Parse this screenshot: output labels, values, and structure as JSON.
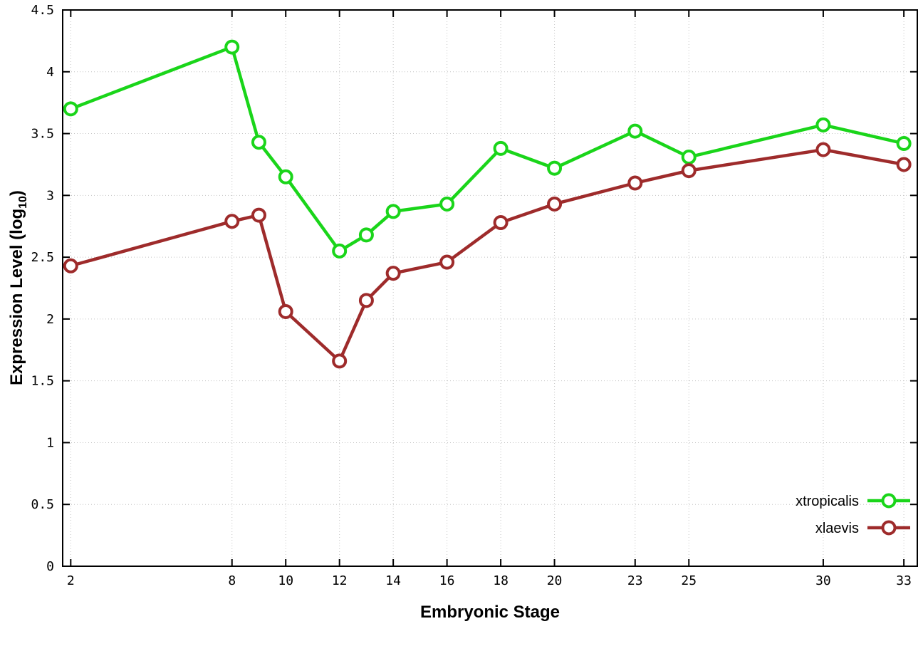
{
  "chart_data": {
    "type": "line",
    "title": "",
    "xlabel": "Embryonic Stage",
    "ylabel": "Expression Level (log10)",
    "ylabel_parts": {
      "main": "Expression Level (log",
      "sub": "10",
      "end": ")"
    },
    "x": [
      2,
      8,
      9,
      10,
      12,
      13,
      14,
      16,
      18,
      20,
      23,
      25,
      30,
      33
    ],
    "series": [
      {
        "name": "xtropicalis",
        "color": "#1ad51a",
        "values": [
          3.7,
          4.2,
          3.43,
          3.15,
          2.55,
          2.68,
          2.87,
          2.93,
          3.38,
          3.22,
          3.52,
          3.31,
          3.57,
          3.42
        ]
      },
      {
        "name": "xlaevis",
        "color": "#9e2b2b",
        "values": [
          2.43,
          2.79,
          2.84,
          2.06,
          1.66,
          2.15,
          2.37,
          2.46,
          2.78,
          2.93,
          3.1,
          3.2,
          3.37,
          3.25
        ]
      }
    ],
    "xticks": [
      2,
      8,
      10,
      12,
      14,
      16,
      18,
      20,
      23,
      25,
      30,
      33
    ],
    "ytick_labels": [
      "0",
      "0.5",
      "1",
      "1.5",
      "2",
      "2.5",
      "3",
      "3.5",
      "4",
      "4.5"
    ],
    "ytick_values": [
      0,
      0.5,
      1,
      1.5,
      2,
      2.5,
      3,
      3.5,
      4,
      4.5
    ],
    "xlim": [
      1.7,
      33.5
    ],
    "ylim": [
      0,
      4.5
    ],
    "grid": true,
    "legend_position": "bottom-right",
    "legend": [
      "xtropicalis",
      "xlaevis"
    ],
    "colors": {
      "border": "#000000",
      "grid": "#c4c4c4",
      "tick_text": "#000000",
      "marker_fill": "#ffffff"
    }
  }
}
